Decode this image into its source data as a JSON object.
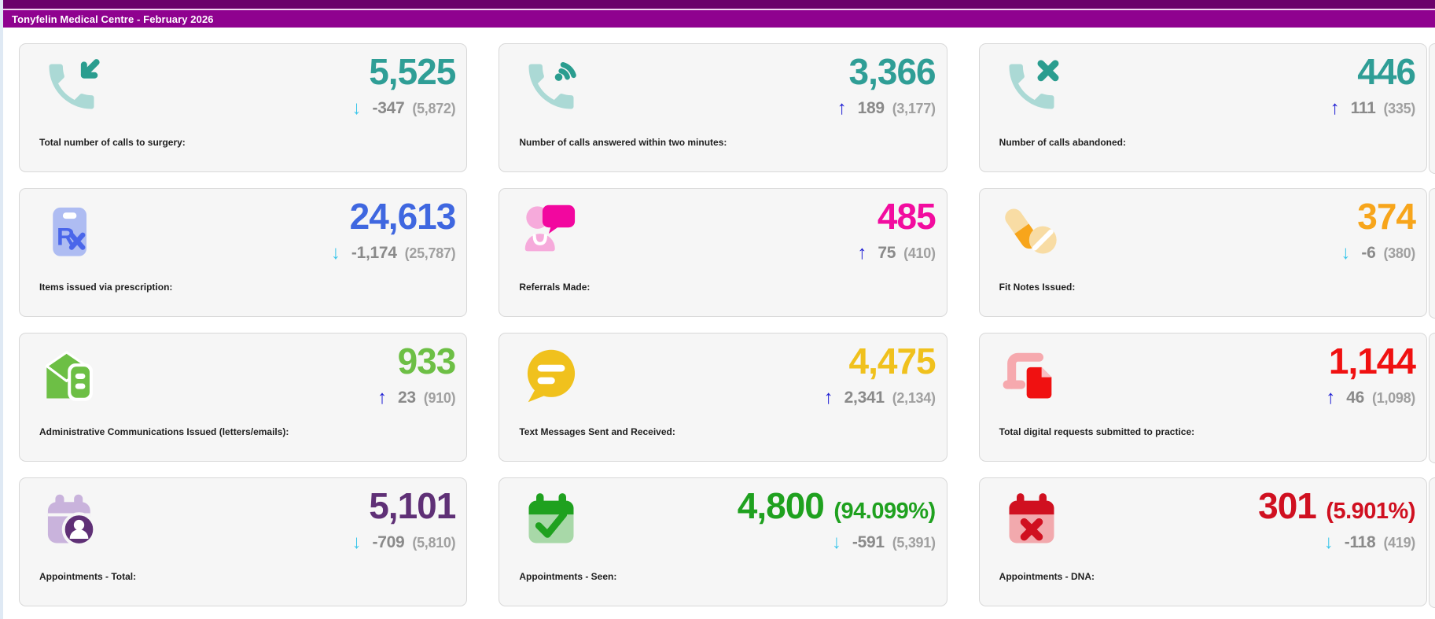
{
  "header": {
    "title": "Tonyfelin Medical Centre - February 2026",
    "topbar_color": "#6b026b",
    "band_color": "#8f028f"
  },
  "trend_colors": {
    "up": "#1f1fd4",
    "down": "#3bc6ea"
  },
  "cards": [
    {
      "icon": "phone-incoming-icon",
      "value": "5,525",
      "suffix": "",
      "trend": "down",
      "delta": "-347",
      "previous": "(5,872)",
      "label": "Total number of calls to surgery:",
      "value_color": "#2f9e96"
    },
    {
      "icon": "phone-answered-icon",
      "value": "3,366",
      "suffix": "",
      "trend": "up",
      "delta": "189",
      "previous": "(3,177)",
      "label": "Number of calls answered within two minutes:",
      "value_color": "#2f9e96"
    },
    {
      "icon": "phone-abandoned-icon",
      "value": "446",
      "suffix": "",
      "trend": "up",
      "delta": "111",
      "previous": "(335)",
      "label": "Number of calls abandoned:",
      "value_color": "#2f9e96"
    },
    {
      "icon": "prescription-icon",
      "value": "24,613",
      "suffix": "",
      "trend": "down",
      "delta": "-1,174",
      "previous": "(25,787)",
      "label": "Items issued via prescription:",
      "value_color": "#3f67e0"
    },
    {
      "icon": "referral-icon",
      "value": "485",
      "suffix": "",
      "trend": "up",
      "delta": "75",
      "previous": "(410)",
      "label": "Referrals Made:",
      "value_color": "#f20c9f"
    },
    {
      "icon": "pills-icon",
      "value": "374",
      "suffix": "",
      "trend": "down",
      "delta": "-6",
      "previous": "(380)",
      "label": "Fit Notes Issued:",
      "value_color": "#f7a51b"
    },
    {
      "icon": "house-mail-icon",
      "value": "933",
      "suffix": "",
      "trend": "up",
      "delta": "23",
      "previous": "(910)",
      "label": "Administrative Communications Issued (letters/emails):",
      "value_color": "#6dbf45"
    },
    {
      "icon": "chat-bubble-icon",
      "value": "4,475",
      "suffix": "",
      "trend": "up",
      "delta": "2,341",
      "previous": "(2,134)",
      "label": "Text Messages Sent and Received:",
      "value_color": "#f0c11d"
    },
    {
      "icon": "digital-request-icon",
      "value": "1,144",
      "suffix": "",
      "trend": "up",
      "delta": "46",
      "previous": "(1,098)",
      "label": "Total digital requests submitted to practice:",
      "value_color": "#f01111"
    },
    {
      "icon": "calendar-person-icon",
      "value": "5,101",
      "suffix": "",
      "trend": "down",
      "delta": "-709",
      "previous": "(5,810)",
      "label": "Appointments - Total:",
      "value_color": "#5f3076"
    },
    {
      "icon": "calendar-check-icon",
      "value": "4,800",
      "suffix": "(94.099%)",
      "trend": "down",
      "delta": "-591",
      "previous": "(5,391)",
      "label": "Appointments - Seen:",
      "value_color": "#1fa11f"
    },
    {
      "icon": "calendar-x-icon",
      "value": "301",
      "suffix": "(5.901%)",
      "trend": "down",
      "delta": "-118",
      "previous": "(419)",
      "label": "Appointments - DNA:",
      "value_color": "#d01020"
    }
  ]
}
